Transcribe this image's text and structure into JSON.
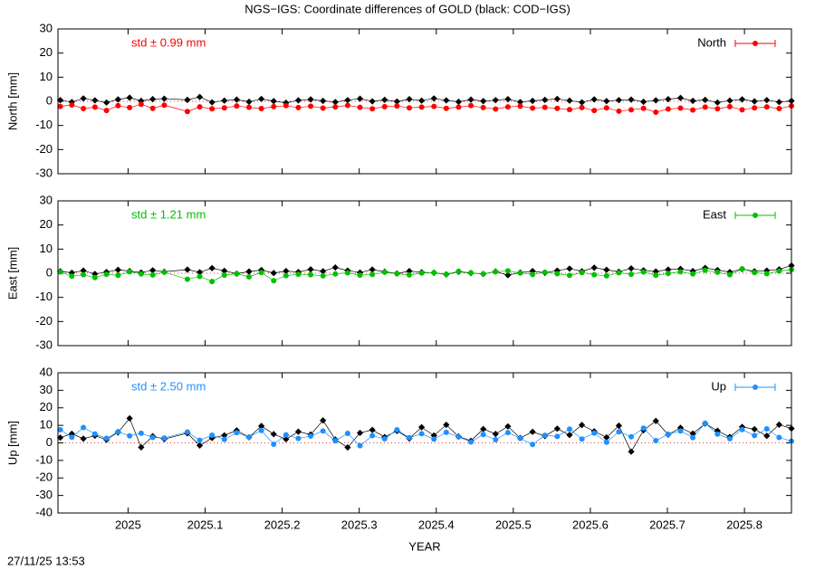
{
  "title": "NGS−IGS: Coordinate differences of GOLD (black: COD−IGS)",
  "timestamp": "27/11/25 13:53",
  "chart_data": [
    {
      "type": "line",
      "ylabel": "North [mm]",
      "annotation": "std ± 0.99 mm",
      "xlim": [
        2024.909,
        2025.861
      ],
      "xticks": [
        2025,
        2025.1,
        2025.2,
        2025.3,
        2025.4,
        2025.5,
        2025.6,
        2025.7,
        2025.8
      ],
      "ylim": [
        -30,
        30
      ],
      "yticks": [
        -30,
        -20,
        -10,
        0,
        10,
        20,
        30
      ],
      "legend": "top-right",
      "x": [
        2024.912,
        2024.927,
        2024.942,
        2024.957,
        2024.972,
        2024.987,
        2025.002,
        2025.017,
        2025.032,
        2025.047,
        2025.077,
        2025.093,
        2025.109,
        2025.125,
        2025.141,
        2025.157,
        2025.173,
        2025.189,
        2025.205,
        2025.221,
        2025.237,
        2025.253,
        2025.269,
        2025.285,
        2025.301,
        2025.317,
        2025.333,
        2025.349,
        2025.365,
        2025.381,
        2025.397,
        2025.413,
        2025.429,
        2025.445,
        2025.461,
        2025.477,
        2025.493,
        2025.509,
        2025.525,
        2025.541,
        2025.557,
        2025.573,
        2025.589,
        2025.605,
        2025.621,
        2025.637,
        2025.653,
        2025.669,
        2025.685,
        2025.701,
        2025.717,
        2025.733,
        2025.749,
        2025.765,
        2025.781,
        2025.797,
        2025.813,
        2025.829,
        2025.845,
        2025.861
      ],
      "series": [
        {
          "color": "#000000",
          "marker": "diamond",
          "values": [
            0.5,
            -0.3,
            1.2,
            0.4,
            -0.5,
            0.8,
            1.5,
            0.2,
            0.9,
            1.1,
            0.6,
            1.8,
            -0.4,
            0.3,
            0.7,
            -0.2,
            1.0,
            0.1,
            -0.6,
            0.4,
            0.8,
            0.2,
            -0.3,
            0.5,
            1.1,
            0.0,
            0.6,
            -0.1,
            0.9,
            0.3,
            1.2,
            0.4,
            -0.2,
            0.7,
            0.1,
            0.5,
            0.9,
            -0.3,
            0.2,
            0.6,
            1.0,
            0.3,
            -0.4,
            0.8,
            0.1,
            0.5,
            0.7,
            -0.2,
            0.4,
            0.9,
            1.4,
            0.2,
            0.6,
            -0.5,
            0.3,
            0.8,
            0.0,
            0.5,
            -0.3,
            0.2
          ]
        },
        {
          "name": "North",
          "color": "#ff0000",
          "marker": "circle",
          "values": [
            -2.1,
            -1.5,
            -3.0,
            -2.4,
            -3.8,
            -1.8,
            -2.6,
            -1.2,
            -2.9,
            -1.6,
            -4.2,
            -2.3,
            -3.1,
            -2.7,
            -1.9,
            -2.5,
            -3.0,
            -2.2,
            -1.8,
            -2.6,
            -2.0,
            -2.8,
            -2.3,
            -1.7,
            -2.5,
            -3.1,
            -2.2,
            -1.9,
            -2.7,
            -2.4,
            -2.1,
            -2.9,
            -2.4,
            -1.8,
            -2.6,
            -3.2,
            -2.3,
            -2.0,
            -2.8,
            -2.5,
            -2.9,
            -3.4,
            -2.6,
            -3.8,
            -2.7,
            -4.1,
            -3.5,
            -2.9,
            -4.5,
            -3.2,
            -2.8,
            -3.6,
            -2.4,
            -3.1,
            -2.2,
            -3.5,
            -2.7,
            -2.3,
            -3.0,
            -1.9
          ]
        }
      ]
    },
    {
      "type": "line",
      "ylabel": "East [mm]",
      "annotation": "std ± 1.21 mm",
      "xlim": [
        2024.909,
        2025.861
      ],
      "xticks": [
        2025,
        2025.1,
        2025.2,
        2025.3,
        2025.4,
        2025.5,
        2025.6,
        2025.7,
        2025.8
      ],
      "ylim": [
        -30,
        30
      ],
      "yticks": [
        -30,
        -20,
        -10,
        0,
        10,
        20,
        30
      ],
      "legend": "top-right",
      "x": [
        2024.912,
        2024.927,
        2024.942,
        2024.957,
        2024.972,
        2024.987,
        2025.002,
        2025.017,
        2025.032,
        2025.047,
        2025.077,
        2025.093,
        2025.109,
        2025.125,
        2025.141,
        2025.157,
        2025.173,
        2025.189,
        2025.205,
        2025.221,
        2025.237,
        2025.253,
        2025.269,
        2025.285,
        2025.301,
        2025.317,
        2025.333,
        2025.349,
        2025.365,
        2025.381,
        2025.397,
        2025.413,
        2025.429,
        2025.445,
        2025.461,
        2025.477,
        2025.493,
        2025.509,
        2025.525,
        2025.541,
        2025.557,
        2025.573,
        2025.589,
        2025.605,
        2025.621,
        2025.637,
        2025.653,
        2025.669,
        2025.685,
        2025.701,
        2025.717,
        2025.733,
        2025.749,
        2025.765,
        2025.781,
        2025.797,
        2025.813,
        2025.829,
        2025.845,
        2025.861
      ],
      "series": [
        {
          "color": "#000000",
          "marker": "diamond",
          "values": [
            0.8,
            0.2,
            1.1,
            -0.3,
            0.5,
            1.4,
            0.9,
            0.3,
            1.2,
            0.6,
            1.5,
            0.4,
            2.1,
            1.0,
            -0.2,
            0.7,
            1.3,
            0.1,
            0.9,
            0.5,
            1.6,
            0.8,
            2.4,
            1.1,
            0.3,
            1.5,
            0.6,
            -0.1,
            0.9,
            0.4,
            0.2,
            -0.5,
            0.6,
            0.1,
            -0.3,
            0.7,
            -0.8,
            0.3,
            0.9,
            0.2,
            1.1,
            1.9,
            0.8,
            2.3,
            1.4,
            0.6,
            2.0,
            1.2,
            0.7,
            1.5,
            1.8,
            0.9,
            2.2,
            1.3,
            0.5,
            1.7,
            0.8,
            1.1,
            1.6,
            3.2
          ]
        },
        {
          "name": "East",
          "color": "#00c000",
          "marker": "circle",
          "values": [
            0.5,
            -1.2,
            -0.6,
            -1.8,
            -0.4,
            -0.9,
            0.6,
            -0.3,
            -0.7,
            0.4,
            -2.5,
            -1.3,
            -3.4,
            -0.8,
            -0.2,
            -1.5,
            0.3,
            -3.1,
            -1.0,
            -0.4,
            -0.6,
            -1.1,
            -0.3,
            0.2,
            -0.8,
            -0.5,
            0.4,
            -0.2,
            -0.7,
            0.1,
            0.3,
            -0.4,
            0.8,
            0.2,
            -0.3,
            0.6,
            1.0,
            0.1,
            -0.5,
            0.4,
            -0.2,
            -0.9,
            0.3,
            -0.6,
            -1.1,
            0.2,
            -0.4,
            0.5,
            -0.8,
            -0.1,
            0.6,
            -0.3,
            1.2,
            0.4,
            -0.6,
            1.8,
            0.3,
            -0.2,
            0.9,
            1.5
          ]
        }
      ]
    },
    {
      "type": "line",
      "ylabel": "Up [mm]",
      "xlabel": "YEAR",
      "annotation": "std ± 2.50 mm",
      "xlim": [
        2024.909,
        2025.861
      ],
      "xticks": [
        2025,
        2025.1,
        2025.2,
        2025.3,
        2025.4,
        2025.5,
        2025.6,
        2025.7,
        2025.8
      ],
      "ylim": [
        -40,
        40
      ],
      "yticks": [
        -40,
        -30,
        -20,
        -10,
        0,
        10,
        20,
        30,
        40
      ],
      "legend": "top-right",
      "x": [
        2024.912,
        2024.927,
        2024.942,
        2024.957,
        2024.972,
        2024.987,
        2025.002,
        2025.017,
        2025.032,
        2025.047,
        2025.077,
        2025.093,
        2025.109,
        2025.125,
        2025.141,
        2025.157,
        2025.173,
        2025.189,
        2025.205,
        2025.221,
        2025.237,
        2025.253,
        2025.269,
        2025.285,
        2025.301,
        2025.317,
        2025.333,
        2025.349,
        2025.365,
        2025.381,
        2025.397,
        2025.413,
        2025.429,
        2025.445,
        2025.461,
        2025.477,
        2025.493,
        2025.509,
        2025.525,
        2025.541,
        2025.557,
        2025.573,
        2025.589,
        2025.605,
        2025.621,
        2025.637,
        2025.653,
        2025.669,
        2025.685,
        2025.701,
        2025.717,
        2025.733,
        2025.749,
        2025.765,
        2025.781,
        2025.797,
        2025.813,
        2025.829,
        2025.845,
        2025.861
      ],
      "series": [
        {
          "color": "#000000",
          "marker": "diamond",
          "values": [
            3.0,
            5.2,
            2.4,
            4.1,
            1.8,
            6.0,
            14.0,
            -2.5,
            3.8,
            2.2,
            5.5,
            -1.5,
            2.8,
            4.3,
            7.1,
            3.2,
            9.6,
            5.0,
            2.1,
            6.4,
            4.8,
            12.8,
            1.9,
            -2.6,
            5.7,
            7.4,
            3.3,
            6.8,
            2.5,
            8.9,
            4.2,
            10.3,
            3.6,
            1.2,
            7.9,
            5.1,
            9.4,
            2.8,
            6.3,
            3.9,
            8.1,
            4.5,
            10.2,
            6.6,
            3.1,
            9.8,
            -5.0,
            7.2,
            12.5,
            4.7,
            8.6,
            5.3,
            11.0,
            6.9,
            3.4,
            9.1,
            7.8,
            4.0,
            10.4,
            8.2
          ]
        },
        {
          "name": "Up",
          "color": "#1e90ff",
          "marker": "circle",
          "values": [
            7.5,
            3.2,
            8.8,
            5.1,
            2.6,
            6.4,
            4.0,
            5.5,
            3.1,
            2.8,
            6.2,
            1.5,
            4.4,
            2.0,
            5.8,
            3.3,
            7.1,
            -0.8,
            4.6,
            2.5,
            3.9,
            6.8,
            1.2,
            5.4,
            -1.6,
            4.1,
            2.3,
            7.5,
            3.0,
            5.2,
            2.1,
            6.0,
            3.4,
            0.5,
            4.8,
            1.8,
            5.9,
            2.6,
            -0.9,
            4.3,
            3.7,
            7.9,
            2.2,
            5.6,
            0.4,
            6.3,
            3.5,
            8.4,
            1.3,
            4.9,
            6.8,
            3.0,
            11.2,
            5.0,
            2.4,
            7.6,
            4.2,
            8.0,
            3.1,
            1.0
          ]
        }
      ]
    }
  ]
}
